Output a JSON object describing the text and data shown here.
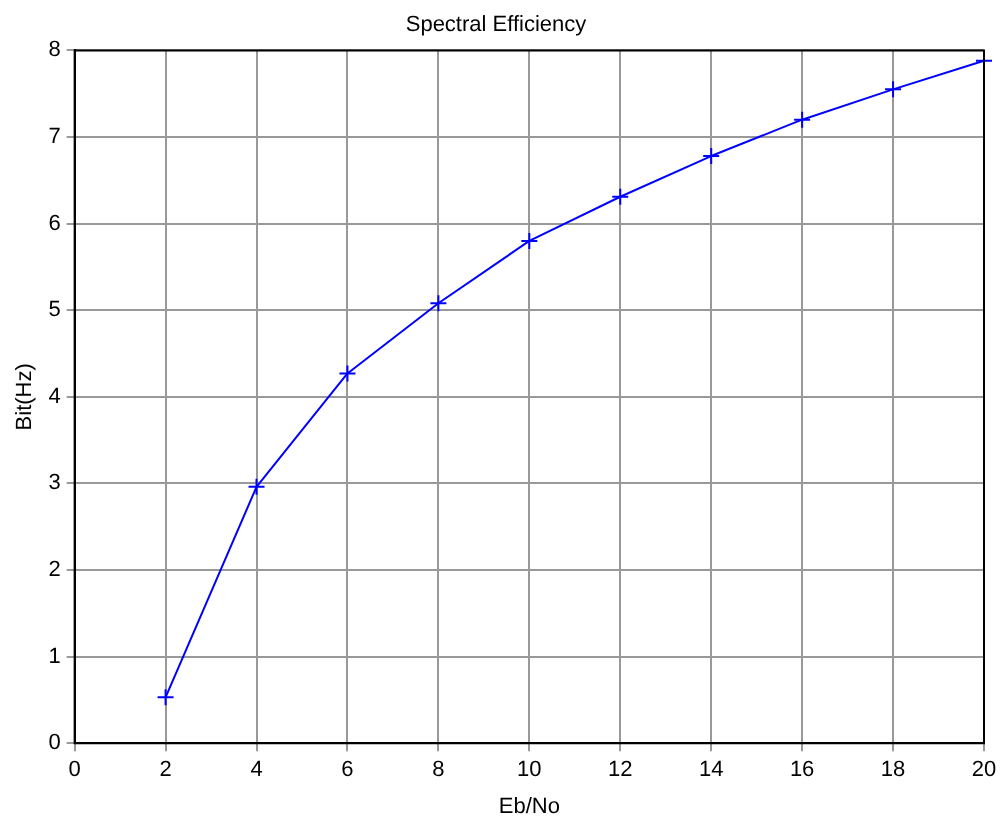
{
  "chart_data": {
    "type": "line",
    "title": "Spectral Efficiency",
    "xlabel": "Eb/No",
    "ylabel": "Bit(Hz)",
    "x": [
      2,
      4,
      6,
      8,
      10,
      12,
      14,
      16,
      18,
      20
    ],
    "series": [
      {
        "color": "#0000ff",
        "values": [
          0.53,
          2.96,
          4.27,
          5.08,
          5.8,
          6.31,
          6.78,
          7.2,
          7.55,
          7.88
        ]
      }
    ],
    "xlim": [
      0,
      20
    ],
    "xticks": [
      0,
      2,
      4,
      6,
      8,
      10,
      12,
      14,
      16,
      18,
      20
    ],
    "ylim": [
      0,
      8
    ],
    "yticks": [
      0,
      1,
      2,
      3,
      4,
      5,
      6,
      7,
      8
    ],
    "grid": true,
    "legend": false,
    "marker": "cross",
    "line_style": "solid"
  }
}
